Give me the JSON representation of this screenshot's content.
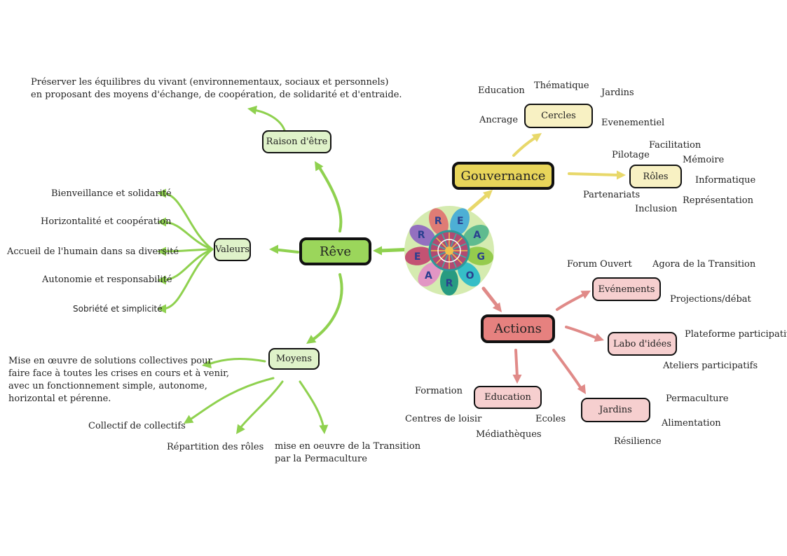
{
  "colors": {
    "reve_fill": "#9bd65b",
    "reve_link": "#8fd14f",
    "reve_light": "#dff2c9",
    "gov_fill": "#e8d55a",
    "gov_link": "#e8d86a",
    "gov_light": "#f8f1c3",
    "act_fill": "#e6817f",
    "act_link": "#e08a88",
    "act_light": "#f6cfcf"
  },
  "nodes": {
    "reve": "Rêve",
    "gouvernance": "Gouvernance",
    "actions": "Actions",
    "raison_detre": "Raison d'être",
    "valeurs": "Valeurs",
    "moyens": "Moyens",
    "cercles": "Cercles",
    "roles": "Rôles",
    "evenements": "Evénements",
    "labo": "Labo d'idées",
    "education": "Education",
    "jardins": "Jardins"
  },
  "logo": {
    "letters": [
      "R",
      "E",
      "A",
      "G",
      "O",
      "R",
      "A",
      "E",
      "R"
    ],
    "icon": "flower-mandala-icon"
  },
  "labels": {
    "raison_text": "Préserver les équilibres du vivant (environnementaux, sociaux et personnels)\nen proposant des moyens d'échange, de coopération, de solidarité et d'entraide.",
    "valeurs": [
      "Bienveillance et solidarité",
      "Horizontalité et coopération",
      "Accueil de l'humain dans sa diversité",
      "Autonomie et responsabilité",
      "Sobriété et simplicité"
    ],
    "moyens_text": "Mise en œuvre de solutions collectives pour\nfaire face à toutes les crises en cours et à venir,\navec un fonctionnement simple, autonome,\nhorizontal et pérenne.",
    "collectif": "Collectif de collectifs",
    "repartition": "Répartition des rôles",
    "transition": "mise en oeuvre de la Transition\npar la Permaculture",
    "cercles": [
      "Education",
      "Thématique",
      "Jardins",
      "Ancrage",
      "Evenementiel"
    ],
    "roles": [
      "Facilitation",
      "Pilotage",
      "Mémoire",
      "Informatique",
      "Partenariats",
      "Représentation",
      "Inclusion"
    ],
    "evenements": [
      "Forum Ouvert",
      "Agora de la Transition",
      "Projections/débat"
    ],
    "labo": [
      "Plateforme participative",
      "Ateliers participatifs"
    ],
    "education": [
      "Formation",
      "Centres de loisir",
      "Ecoles",
      "Médiathèques"
    ],
    "jardins": [
      "Permaculture",
      "Alimentation",
      "Résilience"
    ]
  }
}
